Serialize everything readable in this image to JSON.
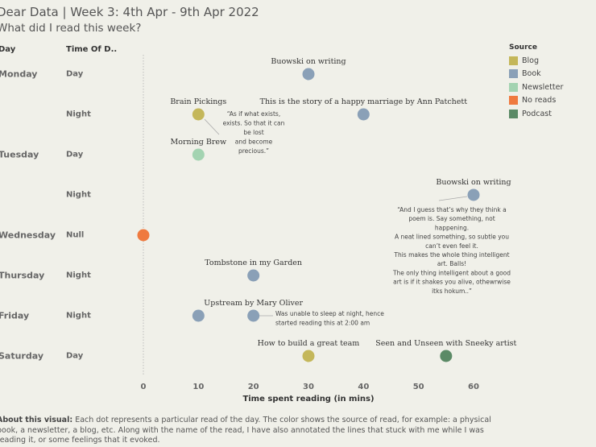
{
  "header": {
    "title": "Dear Data | Week 3: 4th Apr - 9th Apr 2022",
    "subtitle": "What did I read this week?"
  },
  "columns": {
    "day": "Day",
    "time": "Time Of D.."
  },
  "legend": {
    "title": "Source",
    "items": [
      {
        "label": "Blog",
        "color": "#c4b75a"
      },
      {
        "label": "Book",
        "color": "#8aa0b7"
      },
      {
        "label": "Newsletter",
        "color": "#a3d3b1"
      },
      {
        "label": "No reads",
        "color": "#ef7a3f"
      },
      {
        "label": "Podcast",
        "color": "#5b8a66"
      }
    ]
  },
  "about": {
    "label": "About this visual:",
    "text": "Each dot represents a particular read of the day. The color shows the source of read, for example: a physical book, a newsletter, a blog, etc. Along with the name of the read, I have also annotated the lines that stuck with me while I was reading it, or some feelings that it evoked."
  },
  "chart_data": {
    "type": "scatter",
    "xlabel": "Time spent reading (in mins)",
    "x_ticks": [
      0,
      10,
      20,
      30,
      40,
      50,
      60
    ],
    "xlim": [
      0,
      60
    ],
    "rows": [
      {
        "day": "Monday",
        "time": "Day"
      },
      {
        "day": "",
        "time": "Night"
      },
      {
        "day": "Tuesday",
        "time": "Day"
      },
      {
        "day": "",
        "time": "Night"
      },
      {
        "day": "Wednesday",
        "time": "Null"
      },
      {
        "day": "Thursday",
        "time": "Night"
      },
      {
        "day": "Friday",
        "time": "Night"
      },
      {
        "day": "Saturday",
        "time": "Day"
      }
    ],
    "points": [
      {
        "row": 0,
        "x": 30,
        "source": "Book",
        "label": "Buowski on writing"
      },
      {
        "row": 1,
        "x": 10,
        "source": "Blog",
        "label": "Brain Pickings",
        "note": [
          "“As if what exists,",
          "exists. So that it can",
          "be lost",
          "and become",
          "precious.”"
        ]
      },
      {
        "row": 1,
        "x": 40,
        "source": "Book",
        "label": "This is the story of a happy marriage by Ann Patchett"
      },
      {
        "row": 2,
        "x": 10,
        "source": "Newsletter",
        "label": "Morning Brew"
      },
      {
        "row": 3,
        "x": 60,
        "source": "Book",
        "label": "Buowski on writing",
        "note": [
          "“And I guess that’s why they think a",
          "poem is. Say something, not",
          "happening.",
          "A neat lined something, so subtle you",
          "can’t even feel it.",
          "This makes the whole thing intelligent",
          "art. Balls!",
          "The only thing intelligent about a good",
          "art is if it shakes you alive, othewrwise",
          "itks hokum..”"
        ]
      },
      {
        "row": 4,
        "x": 0,
        "source": "No reads",
        "label": ""
      },
      {
        "row": 5,
        "x": 20,
        "source": "Book",
        "label": "Tombstone in my Garden"
      },
      {
        "row": 6,
        "x": 10,
        "source": "Book",
        "label": ""
      },
      {
        "row": 6,
        "x": 20,
        "source": "Book",
        "label": "Upstream by Mary Oliver",
        "note": [
          "Was unable to sleep at night, hence",
          "started reading this at 2:00 am"
        ]
      },
      {
        "row": 7,
        "x": 30,
        "source": "Blog",
        "label": "How to build a great team"
      },
      {
        "row": 7,
        "x": 55,
        "source": "Podcast",
        "label": "Seen and Unseen with Sneeky artist"
      }
    ]
  }
}
